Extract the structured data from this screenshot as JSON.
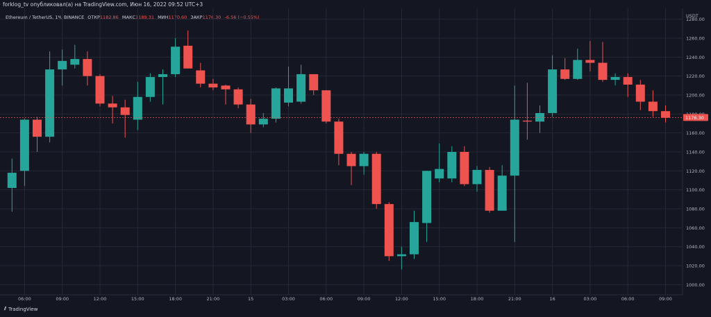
{
  "header": {
    "publisher": "forklog_tv опубликовал(а) на TradingView.com, Июн 16, 2022 09:52 UTC+3"
  },
  "legend": {
    "symbol": "Ethereum / TetherUS, 1Ч, BINANCE",
    "open_label": "ОТКР",
    "open": "1182.86",
    "high_label": "МАКС",
    "high": "1189.31",
    "low_label": "МИН",
    "low": "1170.60",
    "close_label": "ЗАКР",
    "close": "1176.30",
    "change": "-6.56 (−0.55%)"
  },
  "footer": {
    "brand": "TradingView"
  },
  "colors": {
    "up": "#26a69a",
    "down": "#ef5350",
    "background": "#141722",
    "grid": "#262a36",
    "text": "#b2b5be"
  },
  "chart_data": {
    "type": "candlestick",
    "currency": "USDT",
    "ylim": [
      990,
      1290
    ],
    "y_ticks": [
      1000,
      1020,
      1040,
      1060,
      1080,
      1100,
      1120,
      1140,
      1160,
      1180,
      1200,
      1220,
      1240,
      1260,
      1280
    ],
    "y_tick_labels": [
      "1000.00",
      "1020.00",
      "1040.00",
      "1060.00",
      "1080.00",
      "1100.00",
      "1120.00",
      "1140.00",
      "1160.00",
      "1180.00",
      "1200.00",
      "1220.00",
      "1240.00",
      "1260.00",
      "1280.00"
    ],
    "x_tick_labels": [
      {
        "i": 1,
        "label": "06:00"
      },
      {
        "i": 4,
        "label": "09:00"
      },
      {
        "i": 7,
        "label": "12:00"
      },
      {
        "i": 10,
        "label": "15:00"
      },
      {
        "i": 13,
        "label": "18:00"
      },
      {
        "i": 16,
        "label": "21:00"
      },
      {
        "i": 19,
        "label": "15"
      },
      {
        "i": 22,
        "label": "03:00"
      },
      {
        "i": 25,
        "label": "06:00"
      },
      {
        "i": 28,
        "label": "09:00"
      },
      {
        "i": 31,
        "label": "12:00"
      },
      {
        "i": 34,
        "label": "15:00"
      },
      {
        "i": 37,
        "label": "18:00"
      },
      {
        "i": 40,
        "label": "21:00"
      },
      {
        "i": 43,
        "label": "16"
      },
      {
        "i": 46,
        "label": "03:00"
      },
      {
        "i": 49,
        "label": "06:00"
      },
      {
        "i": 52,
        "label": "09:00"
      }
    ],
    "last_price": 1176.3,
    "last_price_label": "1176.30",
    "candles": [
      {
        "o": 1102,
        "h": 1133,
        "l": 1077,
        "c": 1118
      },
      {
        "o": 1120,
        "h": 1175,
        "l": 1104,
        "c": 1174
      },
      {
        "o": 1174,
        "h": 1177,
        "l": 1140,
        "c": 1156
      },
      {
        "o": 1156,
        "h": 1246,
        "l": 1150,
        "c": 1227
      },
      {
        "o": 1227,
        "h": 1248,
        "l": 1210,
        "c": 1236
      },
      {
        "o": 1232,
        "h": 1253,
        "l": 1228,
        "c": 1238
      },
      {
        "o": 1238,
        "h": 1246,
        "l": 1210,
        "c": 1220
      },
      {
        "o": 1220,
        "h": 1222,
        "l": 1188,
        "c": 1191
      },
      {
        "o": 1191,
        "h": 1199,
        "l": 1170,
        "c": 1187
      },
      {
        "o": 1187,
        "h": 1195,
        "l": 1155,
        "c": 1179
      },
      {
        "o": 1174,
        "h": 1214,
        "l": 1163,
        "c": 1198
      },
      {
        "o": 1198,
        "h": 1223,
        "l": 1193,
        "c": 1219
      },
      {
        "o": 1219,
        "h": 1227,
        "l": 1190,
        "c": 1222
      },
      {
        "o": 1222,
        "h": 1260,
        "l": 1219,
        "c": 1251
      },
      {
        "o": 1252,
        "h": 1268,
        "l": 1228,
        "c": 1228
      },
      {
        "o": 1226,
        "h": 1234,
        "l": 1208,
        "c": 1212
      },
      {
        "o": 1212,
        "h": 1217,
        "l": 1205,
        "c": 1208
      },
      {
        "o": 1210,
        "h": 1211,
        "l": 1190,
        "c": 1206
      },
      {
        "o": 1206,
        "h": 1208,
        "l": 1186,
        "c": 1190
      },
      {
        "o": 1190,
        "h": 1196,
        "l": 1160,
        "c": 1169
      },
      {
        "o": 1169,
        "h": 1181,
        "l": 1166,
        "c": 1175
      },
      {
        "o": 1175,
        "h": 1208,
        "l": 1171,
        "c": 1207
      },
      {
        "o": 1192,
        "h": 1230,
        "l": 1188,
        "c": 1207
      },
      {
        "o": 1193,
        "h": 1232,
        "l": 1191,
        "c": 1222
      },
      {
        "o": 1222,
        "h": 1222,
        "l": 1200,
        "c": 1205
      },
      {
        "o": 1205,
        "h": 1205,
        "l": 1170,
        "c": 1172
      },
      {
        "o": 1172,
        "h": 1175,
        "l": 1126,
        "c": 1138
      },
      {
        "o": 1138,
        "h": 1140,
        "l": 1105,
        "c": 1125
      },
      {
        "o": 1125,
        "h": 1140,
        "l": 1116,
        "c": 1138
      },
      {
        "o": 1138,
        "h": 1140,
        "l": 1080,
        "c": 1085
      },
      {
        "o": 1085,
        "h": 1087,
        "l": 1025,
        "c": 1030
      },
      {
        "o": 1030,
        "h": 1040,
        "l": 1016,
        "c": 1032
      },
      {
        "o": 1032,
        "h": 1078,
        "l": 1027,
        "c": 1066
      },
      {
        "o": 1065,
        "h": 1120,
        "l": 1045,
        "c": 1120
      },
      {
        "o": 1112,
        "h": 1149,
        "l": 1108,
        "c": 1122
      },
      {
        "o": 1112,
        "h": 1146,
        "l": 1108,
        "c": 1140
      },
      {
        "o": 1140,
        "h": 1146,
        "l": 1104,
        "c": 1106
      },
      {
        "o": 1106,
        "h": 1125,
        "l": 1098,
        "c": 1121
      },
      {
        "o": 1121,
        "h": 1124,
        "l": 1076,
        "c": 1078
      },
      {
        "o": 1078,
        "h": 1126,
        "l": 1078,
        "c": 1115
      },
      {
        "o": 1115,
        "h": 1210,
        "l": 1045,
        "c": 1174
      },
      {
        "o": 1173,
        "h": 1213,
        "l": 1153,
        "c": 1172
      },
      {
        "o": 1172,
        "h": 1189,
        "l": 1160,
        "c": 1181
      },
      {
        "o": 1181,
        "h": 1242,
        "l": 1177,
        "c": 1227
      },
      {
        "o": 1227,
        "h": 1239,
        "l": 1216,
        "c": 1217
      },
      {
        "o": 1217,
        "h": 1249,
        "l": 1216,
        "c": 1237
      },
      {
        "o": 1237,
        "h": 1257,
        "l": 1225,
        "c": 1234
      },
      {
        "o": 1234,
        "h": 1256,
        "l": 1214,
        "c": 1216
      },
      {
        "o": 1216,
        "h": 1223,
        "l": 1210,
        "c": 1219
      },
      {
        "o": 1219,
        "h": 1223,
        "l": 1198,
        "c": 1211
      },
      {
        "o": 1211,
        "h": 1216,
        "l": 1184,
        "c": 1193
      },
      {
        "o": 1193,
        "h": 1205,
        "l": 1177,
        "c": 1183
      },
      {
        "o": 1183,
        "h": 1189,
        "l": 1171,
        "c": 1176
      }
    ]
  }
}
